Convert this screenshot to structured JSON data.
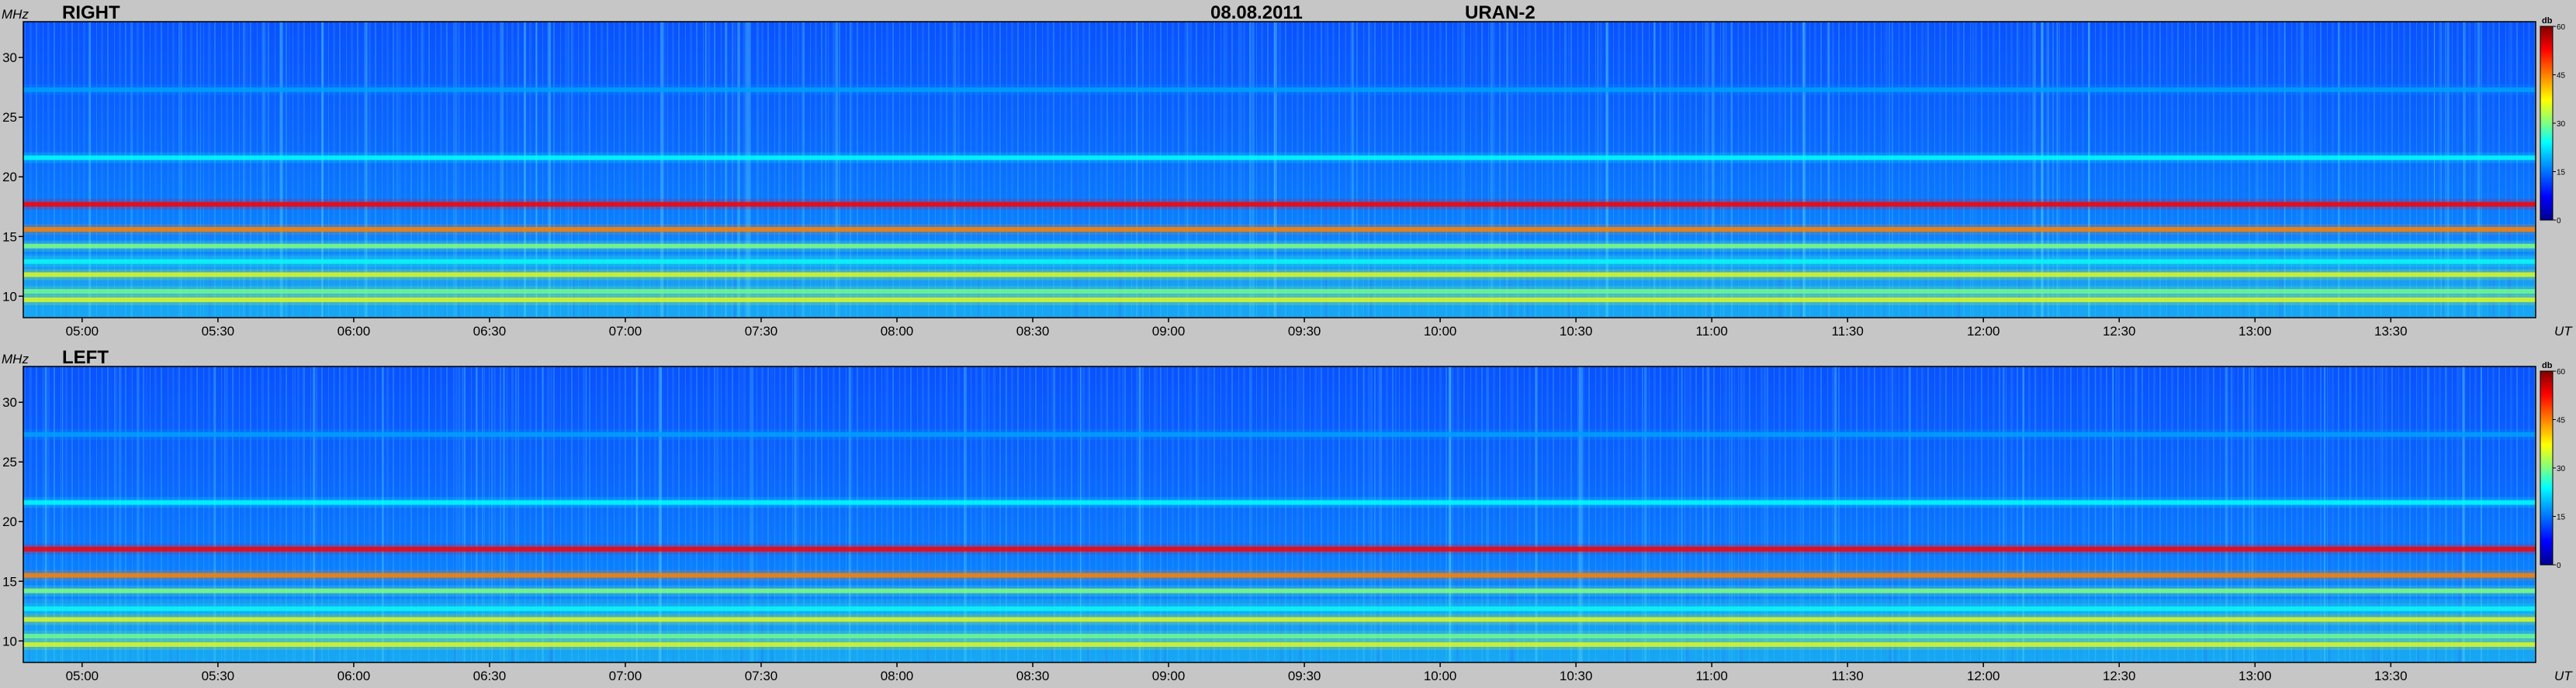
{
  "chart_data": {
    "type": "heatmap",
    "date": "08.08.2011",
    "instrument": "URAN-2",
    "ylabel": "MHz",
    "xlabel": "UT",
    "colorbar_label": "db",
    "colorbar_ticks": [
      0,
      15,
      30,
      45,
      60
    ],
    "clim": [
      0,
      60
    ],
    "ylim": [
      8.2,
      33
    ],
    "xlim": [
      "04:47",
      "14:02"
    ],
    "y_ticks": [
      10,
      15,
      20,
      25,
      30
    ],
    "x_ticks": [
      "05:00",
      "05:30",
      "06:00",
      "06:30",
      "07:00",
      "07:30",
      "08:00",
      "08:30",
      "09:00",
      "09:30",
      "10:00",
      "10:30",
      "11:00",
      "11:30",
      "12:00",
      "12:30",
      "13:00",
      "13:30"
    ],
    "colormap": [
      "#00008f",
      "#0000ff",
      "#00a0ff",
      "#00ffff",
      "#80ff80",
      "#ffff00",
      "#ff8000",
      "#ff0000",
      "#800000"
    ],
    "panels": [
      {
        "label": "RIGHT",
        "bands": [
          {
            "freq": 17.7,
            "db": 50
          },
          {
            "freq": 15.6,
            "db": 42
          },
          {
            "freq": 14.2,
            "db": 30
          },
          {
            "freq": 12.9,
            "db": 24
          },
          {
            "freq": 11.8,
            "db": 36
          },
          {
            "freq": 10.4,
            "db": 28
          },
          {
            "freq": 9.7,
            "db": 40
          },
          {
            "freq": 21.6,
            "db": 20
          },
          {
            "freq": 27.3,
            "db": 15
          }
        ]
      },
      {
        "label": "LEFT",
        "bands": [
          {
            "freq": 17.7,
            "db": 52
          },
          {
            "freq": 15.5,
            "db": 44
          },
          {
            "freq": 14.2,
            "db": 32
          },
          {
            "freq": 12.7,
            "db": 26
          },
          {
            "freq": 11.8,
            "db": 38
          },
          {
            "freq": 10.4,
            "db": 30
          },
          {
            "freq": 9.7,
            "db": 40
          },
          {
            "freq": 21.6,
            "db": 20
          },
          {
            "freq": 27.3,
            "db": 15
          }
        ]
      }
    ]
  }
}
